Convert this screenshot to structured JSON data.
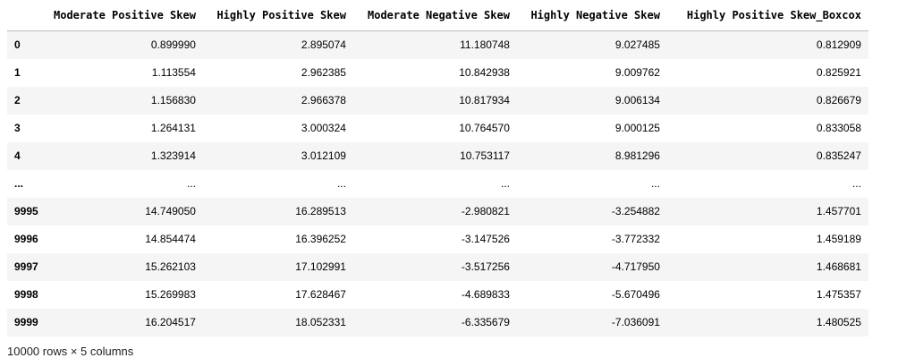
{
  "table": {
    "columns": [
      "Moderate Positive Skew",
      "Highly Positive Skew",
      "Moderate Negative Skew",
      "Highly Negative Skew",
      "Highly Positive Skew_Boxcox"
    ],
    "rows": [
      {
        "index": "0",
        "cells": [
          "0.899990",
          "2.895074",
          "11.180748",
          "9.027485",
          "0.812909"
        ]
      },
      {
        "index": "1",
        "cells": [
          "1.113554",
          "2.962385",
          "10.842938",
          "9.009762",
          "0.825921"
        ]
      },
      {
        "index": "2",
        "cells": [
          "1.156830",
          "2.966378",
          "10.817934",
          "9.006134",
          "0.826679"
        ]
      },
      {
        "index": "3",
        "cells": [
          "1.264131",
          "3.000324",
          "10.764570",
          "9.000125",
          "0.833058"
        ]
      },
      {
        "index": "4",
        "cells": [
          "1.323914",
          "3.012109",
          "10.753117",
          "8.981296",
          "0.835247"
        ]
      },
      {
        "index": "...",
        "cells": [
          "...",
          "...",
          "...",
          "...",
          "..."
        ]
      },
      {
        "index": "9995",
        "cells": [
          "14.749050",
          "16.289513",
          "-2.980821",
          "-3.254882",
          "1.457701"
        ]
      },
      {
        "index": "9996",
        "cells": [
          "14.854474",
          "16.396252",
          "-3.147526",
          "-3.772332",
          "1.459189"
        ]
      },
      {
        "index": "9997",
        "cells": [
          "15.262103",
          "17.102991",
          "-3.517256",
          "-4.717950",
          "1.468681"
        ]
      },
      {
        "index": "9998",
        "cells": [
          "15.269983",
          "17.628467",
          "-4.689833",
          "-5.670496",
          "1.475357"
        ]
      },
      {
        "index": "9999",
        "cells": [
          "16.204517",
          "18.052331",
          "-6.335679",
          "-7.036091",
          "1.480525"
        ]
      }
    ]
  },
  "footer": {
    "shape_text": "10000 rows × 5 columns"
  },
  "colors": {
    "odd_row_bg": "#f5f5f5",
    "even_row_bg": "#ffffff",
    "header_border": "#bdbdbd",
    "text": "#000000"
  }
}
